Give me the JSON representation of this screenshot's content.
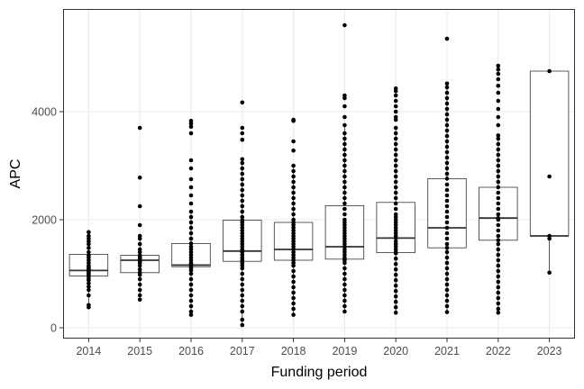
{
  "chart_data": {
    "type": "boxplot",
    "xlabel": "Funding period",
    "ylabel": "APC",
    "ylim": [
      -200,
      5900
    ],
    "y_ticks": [
      0,
      2000,
      4000
    ],
    "grid": true,
    "legend": "none",
    "categories": [
      "2014",
      "2015",
      "2016",
      "2017",
      "2018",
      "2019",
      "2020",
      "2021",
      "2022",
      "2023"
    ],
    "boxes": [
      {
        "category": "2014",
        "q1": 960,
        "median": 1060,
        "q3": 1360,
        "whisker_low": 380,
        "whisker_high": 1770
      },
      {
        "category": "2015",
        "q1": 1020,
        "median": 1250,
        "q3": 1340,
        "whisker_low": 520,
        "whisker_high": 1700
      },
      {
        "category": "2016",
        "q1": 1130,
        "median": 1160,
        "q3": 1560,
        "whisker_low": 240,
        "whisker_high": 2150
      },
      {
        "category": "2017",
        "q1": 1230,
        "median": 1420,
        "q3": 1990,
        "whisker_low": 50,
        "whisker_high": 3120
      },
      {
        "category": "2018",
        "q1": 1250,
        "median": 1450,
        "q3": 1950,
        "whisker_low": 240,
        "whisker_high": 3000
      },
      {
        "category": "2019",
        "q1": 1270,
        "median": 1500,
        "q3": 2260,
        "whisker_low": 300,
        "whisker_high": 3750
      },
      {
        "category": "2020",
        "q1": 1390,
        "median": 1660,
        "q3": 2320,
        "whisker_low": 280,
        "whisker_high": 3700
      },
      {
        "category": "2021",
        "q1": 1480,
        "median": 1850,
        "q3": 2760,
        "whisker_low": 290,
        "whisker_high": 4520
      },
      {
        "category": "2022",
        "q1": 1620,
        "median": 2030,
        "q3": 2600,
        "whisker_low": 280,
        "whisker_high": 3560
      },
      {
        "category": "2023",
        "q1": 1700,
        "median": 1700,
        "q3": 4750,
        "whisker_low": 1020,
        "whisker_high": 4750
      }
    ],
    "points": [
      {
        "category": "2014",
        "values": [
          380,
          420,
          600,
          700,
          760,
          820,
          880,
          900,
          940,
          980,
          1000,
          1020,
          1050,
          1060,
          1080,
          1100,
          1120,
          1150,
          1200,
          1250,
          1300,
          1340,
          1400,
          1480,
          1550,
          1600,
          1650,
          1700,
          1770
        ]
      },
      {
        "category": "2015",
        "values": [
          520,
          600,
          700,
          800,
          900,
          980,
          1020,
          1080,
          1150,
          1200,
          1230,
          1250,
          1270,
          1300,
          1320,
          1340,
          1400,
          1450,
          1550,
          1650,
          1700,
          1900,
          2250,
          2780,
          3700
        ]
      },
      {
        "category": "2016",
        "values": [
          240,
          300,
          400,
          500,
          600,
          700,
          800,
          900,
          1000,
          1060,
          1100,
          1130,
          1150,
          1160,
          1180,
          1200,
          1250,
          1300,
          1350,
          1400,
          1450,
          1500,
          1560,
          1650,
          1750,
          1850,
          1950,
          2050,
          2150,
          2300,
          2450,
          2600,
          2750,
          2950,
          3100,
          3600,
          3720,
          3780,
          3830
        ]
      },
      {
        "category": "2017",
        "values": [
          50,
          150,
          300,
          400,
          500,
          600,
          700,
          800,
          900,
          1000,
          1100,
          1150,
          1200,
          1230,
          1260,
          1300,
          1350,
          1400,
          1420,
          1450,
          1500,
          1550,
          1600,
          1650,
          1700,
          1750,
          1800,
          1850,
          1900,
          1950,
          1990,
          2050,
          2150,
          2250,
          2350,
          2450,
          2550,
          2650,
          2750,
          2850,
          2950,
          3050,
          3120,
          3480,
          3600,
          3700,
          4170
        ]
      },
      {
        "category": "2018",
        "values": [
          240,
          350,
          450,
          550,
          650,
          750,
          850,
          950,
          1050,
          1150,
          1200,
          1250,
          1300,
          1350,
          1400,
          1450,
          1500,
          1550,
          1600,
          1650,
          1700,
          1750,
          1800,
          1850,
          1900,
          1950,
          2000,
          2100,
          2200,
          2300,
          2400,
          2500,
          2600,
          2700,
          2800,
          2900,
          3000,
          3280,
          3450,
          3830,
          3850
        ]
      },
      {
        "category": "2019",
        "values": [
          300,
          400,
          500,
          600,
          700,
          800,
          900,
          1000,
          1100,
          1200,
          1250,
          1270,
          1300,
          1350,
          1400,
          1450,
          1500,
          1550,
          1600,
          1650,
          1700,
          1750,
          1800,
          1850,
          1900,
          1950,
          2000,
          2100,
          2200,
          2300,
          2400,
          2500,
          2600,
          2700,
          2800,
          2900,
          3000,
          3100,
          3200,
          3300,
          3400,
          3500,
          3600,
          3750,
          3900,
          4100,
          4250,
          4300,
          5600
        ]
      },
      {
        "category": "2020",
        "values": [
          280,
          380,
          480,
          580,
          680,
          780,
          880,
          980,
          1080,
          1180,
          1280,
          1380,
          1400,
          1450,
          1500,
          1550,
          1600,
          1660,
          1700,
          1750,
          1800,
          1850,
          1900,
          1950,
          2000,
          2050,
          2100,
          2200,
          2300,
          2400,
          2500,
          2600,
          2700,
          2800,
          2900,
          3000,
          3100,
          3200,
          3300,
          3400,
          3500,
          3600,
          3700,
          3850,
          3900,
          4000,
          4100,
          4200,
          4300,
          4380,
          4430
        ]
      },
      {
        "category": "2021",
        "values": [
          290,
          400,
          500,
          600,
          700,
          800,
          900,
          1000,
          1100,
          1200,
          1300,
          1400,
          1480,
          1550,
          1650,
          1750,
          1850,
          1950,
          2050,
          2150,
          2250,
          2350,
          2450,
          2550,
          2650,
          2760,
          2850,
          2950,
          3050,
          3150,
          3250,
          3350,
          3450,
          3550,
          3650,
          3750,
          3850,
          3950,
          4050,
          4150,
          4250,
          4350,
          4450,
          4520,
          5350
        ]
      },
      {
        "category": "2022",
        "values": [
          280,
          350,
          450,
          550,
          650,
          750,
          850,
          950,
          1050,
          1150,
          1250,
          1350,
          1450,
          1550,
          1620,
          1700,
          1800,
          1900,
          2000,
          2030,
          2100,
          2200,
          2300,
          2400,
          2500,
          2600,
          2700,
          2800,
          2900,
          3000,
          3100,
          3200,
          3300,
          3400,
          3500,
          3560,
          3750,
          3900,
          4050,
          4200,
          4350,
          4480,
          4600,
          4700,
          4780,
          4850
        ]
      },
      {
        "category": "2023",
        "values": [
          1020,
          1650,
          1700,
          2800,
          4750
        ]
      }
    ]
  }
}
